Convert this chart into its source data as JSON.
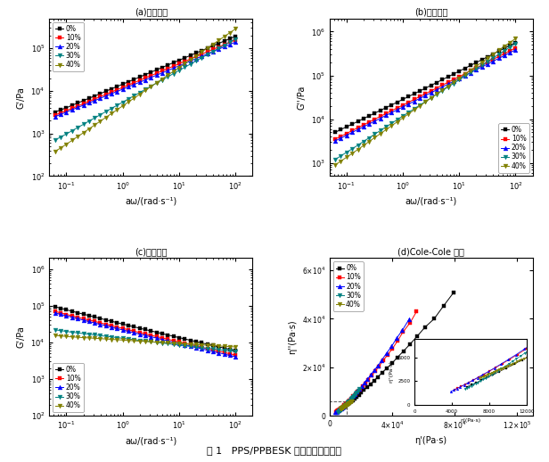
{
  "colors": [
    "black",
    "red",
    "blue",
    "#008080",
    "#808000"
  ],
  "labels": [
    "0%",
    "10%",
    "20%",
    "30%",
    "40%"
  ],
  "omega": [
    0.0628,
    0.0794,
    0.1,
    0.126,
    0.159,
    0.2,
    0.251,
    0.316,
    0.398,
    0.501,
    0.631,
    0.794,
    1.0,
    1.26,
    1.585,
    2.0,
    2.51,
    3.16,
    3.98,
    5.01,
    6.31,
    7.94,
    10.0,
    12.6,
    15.85,
    19.95,
    25.1,
    31.6,
    39.8,
    50.1,
    63.1,
    79.4,
    100.0
  ],
  "Gprime_0": [
    3200,
    3600,
    4000,
    4600,
    5200,
    5900,
    6700,
    7600,
    8600,
    9800,
    11200,
    12700,
    14400,
    16400,
    18600,
    21200,
    24100,
    27400,
    31200,
    35500,
    40400,
    46000,
    52400,
    59600,
    67900,
    77300,
    88000,
    100100,
    114000,
    129800,
    147700,
    168100,
    191300
  ],
  "Gprime_10": [
    2700,
    3050,
    3450,
    3900,
    4400,
    5000,
    5700,
    6450,
    7300,
    8300,
    9400,
    10700,
    12100,
    13700,
    15600,
    17700,
    20100,
    22800,
    25900,
    29500,
    33500,
    38100,
    43300,
    49300,
    56100,
    63800,
    72700,
    82700,
    94100,
    107100,
    121900,
    138700,
    157800
  ],
  "Gprime_20": [
    2500,
    2800,
    3200,
    3600,
    4100,
    4600,
    5200,
    5900,
    6700,
    7600,
    8600,
    9700,
    11000,
    12500,
    14100,
    16000,
    18100,
    20600,
    23400,
    26500,
    30100,
    34200,
    38800,
    44100,
    50100,
    57000,
    64800,
    73700,
    83700,
    95200,
    108200,
    123000,
    139900
  ],
  "Gprime_30": [
    700,
    830,
    980,
    1160,
    1380,
    1640,
    1950,
    2310,
    2750,
    3260,
    3870,
    4600,
    5450,
    6480,
    7680,
    9120,
    10820,
    12850,
    15240,
    18080,
    21450,
    25450,
    30190,
    35810,
    42500,
    50380,
    59760,
    70870,
    84060,
    99700,
    118240,
    140200,
    166200
  ],
  "Gprime_40": [
    380,
    460,
    560,
    690,
    850,
    1040,
    1280,
    1580,
    1940,
    2390,
    2940,
    3620,
    4450,
    5480,
    6740,
    8300,
    10210,
    12570,
    15470,
    19040,
    23440,
    28870,
    35550,
    43780,
    53900,
    66380,
    81710,
    100630,
    123860,
    152500,
    187700,
    231100,
    284500
  ],
  "Gdp_0": [
    5000,
    5800,
    6700,
    7700,
    8900,
    10300,
    11900,
    13700,
    15900,
    18300,
    21200,
    24500,
    28400,
    32900,
    38100,
    44100,
    51200,
    59300,
    68900,
    79900,
    92800,
    107700,
    125100,
    145300,
    168800,
    196200,
    228000,
    265100,
    308300,
    358600,
    416900,
    484800,
    563700
  ],
  "Gdp_10": [
    3500,
    4100,
    4700,
    5500,
    6400,
    7400,
    8600,
    10000,
    11600,
    13400,
    15600,
    18100,
    21000,
    24400,
    28300,
    32900,
    38200,
    44400,
    51500,
    59900,
    69600,
    80900,
    94000,
    109200,
    127000,
    147700,
    171800,
    199700,
    232300,
    270200,
    314300,
    365700,
    425300
  ],
  "Gdp_20": [
    3200,
    3700,
    4300,
    5000,
    5800,
    6700,
    7800,
    9000,
    10500,
    12200,
    14100,
    16400,
    19000,
    22100,
    25700,
    29800,
    34700,
    40300,
    46800,
    54400,
    63200,
    73500,
    85400,
    99200,
    115300,
    134000,
    155800,
    181000,
    210400,
    244700,
    284600,
    330900,
    384700
  ],
  "Gdp_30": [
    1200,
    1450,
    1750,
    2100,
    2550,
    3100,
    3750,
    4550,
    5500,
    6650,
    8050,
    9750,
    11800,
    14300,
    17300,
    20900,
    25300,
    30600,
    37000,
    44800,
    54200,
    65600,
    79400,
    96100,
    116400,
    140900,
    170600,
    206600,
    250200,
    303100,
    367100,
    444700,
    538700
  ],
  "Gdp_40": [
    900,
    1100,
    1350,
    1650,
    2030,
    2500,
    3080,
    3790,
    4670,
    5750,
    7080,
    8720,
    10740,
    13220,
    16290,
    20070,
    24730,
    30470,
    37530,
    46250,
    56990,
    70220,
    86540,
    106700,
    131500,
    162000,
    199700,
    246100,
    303200,
    373700,
    460600,
    567700,
    699300
  ],
  "title": "图 1   PPS/PPBESK 共混体系流变行为",
  "sub_a": "(a)储能模量",
  "sub_b": "(b)损耗模量",
  "sub_c": "(c)复数黏度",
  "sub_d": "(d)Cole-Cole 曲线",
  "xlabel_omega": "aω/(rad·s⁻¹)",
  "ylabel_Gprime": "G’/Pa",
  "ylabel_Gdp": "G’’/Pa",
  "ylabel_eta": "G’/Pa",
  "xlabel_cole_x": "η’(Pa·s)",
  "ylabel_cole_y": "η’’(Pa·s)"
}
